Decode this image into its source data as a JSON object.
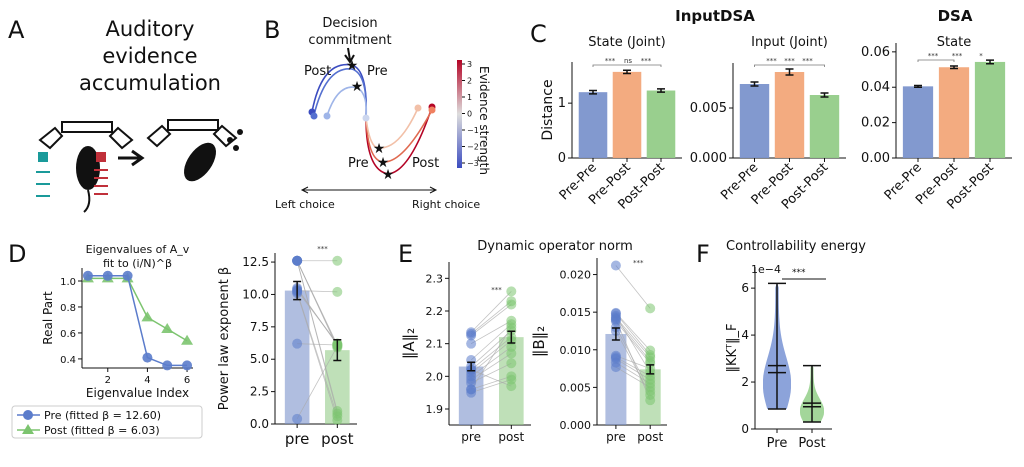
{
  "panels": {
    "a": {
      "letter": "A",
      "title_lines": [
        "Auditory",
        "evidence",
        "accumulation"
      ]
    },
    "b": {
      "letter": "B",
      "annotation_lines": [
        "Decision",
        "commitment"
      ],
      "labels": {
        "post_top": "Post",
        "pre_top": "Pre",
        "pre_bottom": "Pre",
        "post_bottom": "Post"
      },
      "left_choice": "Left choice",
      "right_choice": "Right choice",
      "colorbar_label": "Evidence strength",
      "colorbar_ticks": [
        "3",
        "2",
        "1",
        "0",
        "−1",
        "−2",
        "−3"
      ],
      "colorbar_colors": {
        "low": "#3b4cc0",
        "mid": "#dddddd",
        "high": "#b40426"
      }
    },
    "c": {
      "letter": "C",
      "group_inputdsa": "InputDSA",
      "group_dsa": "DSA"
    },
    "d": {
      "letter": "D"
    },
    "e": {
      "letter": "E",
      "title": "Dynamic operator norm"
    },
    "f": {
      "letter": "F",
      "title": "Controllability energy"
    }
  },
  "colors": {
    "pre": "#7b93cc",
    "prepost": "#f2a679",
    "post": "#94cc88",
    "pre_dark": "#5b7ccb",
    "post_dark": "#7cc46f"
  },
  "chart_data": [
    {
      "id": "c1",
      "type": "bar",
      "title": "State (Joint)",
      "ylabel": "Distance",
      "categories": [
        "Pre-Pre",
        "Pre-Post",
        "Post-Post"
      ],
      "values": [
        1.2,
        1.57,
        1.23
      ],
      "errors": [
        0.03,
        0.03,
        0.03
      ],
      "ylim": [
        0,
        1.75
      ],
      "yticks": [
        0,
        1
      ],
      "ytick_labels": [
        "0",
        "1"
      ],
      "significance": [
        {
          "from": 0,
          "to": 2,
          "labels": [
            "***",
            "ns",
            "***"
          ]
        }
      ]
    },
    {
      "id": "c2",
      "type": "bar",
      "title": "Input (Joint)",
      "categories": [
        "Pre-Pre",
        "Pre-Post",
        "Post-Post"
      ],
      "values": [
        0.0074,
        0.0086,
        0.0063
      ],
      "errors": [
        0.0002,
        0.0003,
        0.0002
      ],
      "ylim": [
        0,
        0.0095
      ],
      "yticks": [
        0,
        0.005
      ],
      "ytick_labels": [
        "0.000",
        "0.005"
      ],
      "significance": [
        {
          "from": 0,
          "to": 2,
          "labels": [
            "***",
            "***",
            "***"
          ]
        }
      ]
    },
    {
      "id": "c3",
      "type": "bar",
      "title": "State",
      "categories": [
        "Pre-Pre",
        "Pre-Post",
        "Post-Post"
      ],
      "values": [
        0.0405,
        0.0513,
        0.0543
      ],
      "errors": [
        0.0005,
        0.0007,
        0.001
      ],
      "ylim": [
        0,
        0.065
      ],
      "yticks": [
        0,
        0.02,
        0.04,
        0.06
      ],
      "ytick_labels": [
        "0.00",
        "0.02",
        "0.04",
        "0.06"
      ],
      "significance": [
        {
          "from": 0,
          "to": 1,
          "labels": [
            "***",
            "***",
            "*"
          ]
        }
      ]
    },
    {
      "id": "d1",
      "type": "line",
      "title_lines": [
        "Eigenvalues of A_v",
        "fit to (i/N)^β"
      ],
      "xlabel": "Eigenvalue Index",
      "ylabel": "Real Part",
      "x": [
        1,
        2,
        3,
        4,
        5,
        6
      ],
      "xlim": [
        0.7,
        6.3
      ],
      "ylim": [
        0.33,
        1.1
      ],
      "xticks": [
        2,
        4,
        6
      ],
      "xtick_labels": [
        "2",
        "4",
        "6"
      ],
      "yticks": [
        0.4,
        0.6,
        0.8,
        1.0
      ],
      "ytick_labels": [
        "0.4",
        "0.6",
        "0.8",
        "1.0"
      ],
      "series": [
        {
          "name": "Pre (fitted β = 12.60)",
          "marker": "circle",
          "values": [
            1.04,
            1.04,
            1.04,
            0.41,
            0.35,
            0.35
          ]
        },
        {
          "name": "Post (fitted β = 6.03)",
          "marker": "triangle",
          "values": [
            1.02,
            1.02,
            1.02,
            0.72,
            0.63,
            0.54
          ]
        }
      ],
      "legend": "bottom"
    },
    {
      "id": "d2",
      "type": "bar",
      "ylabel": "Power law exponent β",
      "categories": [
        "pre",
        "post"
      ],
      "values": [
        10.3,
        5.7
      ],
      "errors": [
        0.7,
        0.8
      ],
      "ylim": [
        0,
        13.2
      ],
      "yticks": [
        0,
        2.5,
        5,
        7.5,
        10,
        12.5
      ],
      "ytick_labels": [
        "0.0",
        "2.5",
        "5.0",
        "7.5",
        "10.0",
        "12.5"
      ],
      "significance": "***",
      "paired_points": {
        "pre": [
          12.6,
          12.6,
          12.6,
          12.6,
          12.6,
          10.3,
          10.4,
          10.2,
          10.5,
          10.1,
          6.2,
          0.4,
          12.6,
          10.3
        ],
        "post": [
          12.6,
          6.1,
          6.0,
          5.9,
          1.0,
          10.2,
          6.2,
          0.6,
          6.1,
          0.3,
          6.1,
          6.0,
          0.8,
          6.2
        ]
      }
    },
    {
      "id": "e1",
      "type": "bar",
      "ylabel": "‖A‖₂",
      "categories": [
        "pre",
        "post"
      ],
      "values": [
        2.03,
        2.12
      ],
      "errors": [
        0.013,
        0.018
      ],
      "ylim": [
        1.851,
        2.35
      ],
      "yticks": [
        1.9,
        2.0,
        2.1,
        2.2,
        2.3
      ],
      "ytick_labels": [
        "1.9",
        "2.0",
        "2.1",
        "2.2",
        "2.3"
      ],
      "significance": "***",
      "paired_points": {
        "pre": [
          2.135,
          2.13,
          2.125,
          2.1,
          2.05,
          2.03,
          2.02,
          2.01,
          2.0,
          1.99,
          1.98,
          1.96,
          1.95,
          2.02,
          1.96
        ],
        "post": [
          2.26,
          2.23,
          2.22,
          2.17,
          2.16,
          2.14,
          2.12,
          2.11,
          2.09,
          2.07,
          2.04,
          2.0,
          1.99,
          1.97,
          2.15
        ]
      }
    },
    {
      "id": "e2",
      "type": "bar",
      "ylabel": "‖B‖₂",
      "categories": [
        "pre",
        "post"
      ],
      "values": [
        0.0121,
        0.0074
      ],
      "errors": [
        0.0008,
        0.0006
      ],
      "ylim": [
        0,
        0.0222
      ],
      "yticks": [
        0,
        0.005,
        0.01,
        0.015,
        0.02
      ],
      "ytick_labels": [
        "0.000",
        "0.005",
        "0.010",
        "0.015",
        "0.020"
      ],
      "significance": "***",
      "paired_points": {
        "pre": [
          0.0212,
          0.0149,
          0.0148,
          0.0143,
          0.0141,
          0.0138,
          0.0092,
          0.009,
          0.0088,
          0.0083,
          0.0077,
          0.013,
          0.0125,
          0.014,
          0.0145
        ],
        "post": [
          0.0155,
          0.0099,
          0.0093,
          0.009,
          0.0085,
          0.0082,
          0.0075,
          0.0065,
          0.006,
          0.0055,
          0.005,
          0.0045,
          0.004,
          0.0033,
          0.007
        ]
      }
    },
    {
      "id": "f",
      "type": "violin",
      "ylabel": "‖KKᵀ‖_F",
      "scale_label": "1e−4",
      "categories": [
        "Pre",
        "Post"
      ],
      "ylim": [
        0,
        6.9
      ],
      "yticks": [
        0,
        2,
        4,
        6
      ],
      "ytick_labels": [
        "0",
        "2",
        "4",
        "6"
      ],
      "significance": "***",
      "stats": [
        {
          "min": 0.85,
          "max": 6.2,
          "median": 2.4,
          "mean": 2.7
        },
        {
          "min": 0.3,
          "max": 2.7,
          "median": 0.95,
          "mean": 1.1
        }
      ]
    }
  ]
}
